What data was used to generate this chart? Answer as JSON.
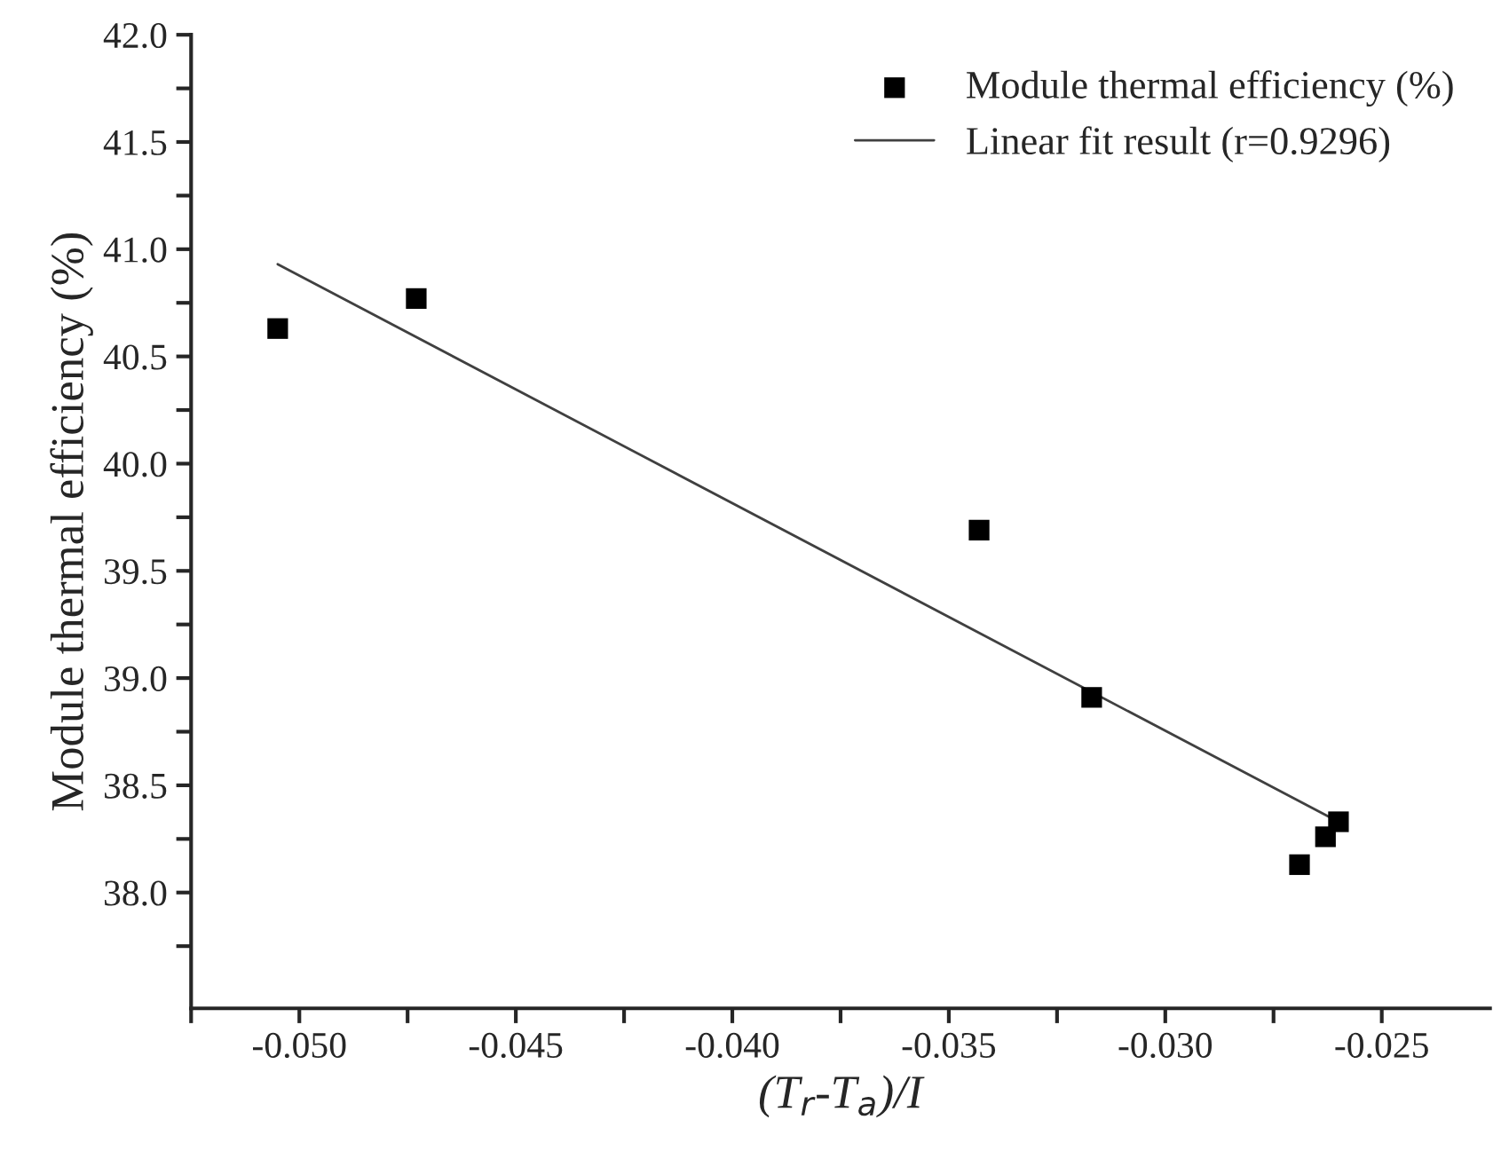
{
  "chart_data": {
    "type": "scatter",
    "xlabel": "(T$_{r}$-T$_{a}$)/I",
    "ylabel": "Module thermal efficiency (%)",
    "series": [
      {
        "name": "Module thermal efficiency (%)",
        "color": "#000000",
        "marker": "square",
        "x": [
          -0.0505,
          -0.0473,
          -0.0343,
          -0.0317,
          -0.0269,
          -0.0263,
          -0.026
        ],
        "values": [
          40.63,
          40.77,
          39.69,
          38.91,
          38.13,
          38.26,
          38.33
        ]
      },
      {
        "name": "Linear fit result (r=0.9296)",
        "type": "line",
        "color": "#404040",
        "marker": "none",
        "line_style": "solid",
        "x": [
          -0.0505,
          -0.026
        ],
        "values": [
          40.93,
          38.33
        ]
      }
    ],
    "xlim": [
      -0.0525,
      -0.0225
    ],
    "ylim": [
      37.46,
      42.0
    ],
    "xticks": [
      {
        "value": -0.0525,
        "label": null
      },
      {
        "value": -0.05,
        "label": "-0.050"
      },
      {
        "value": -0.0475,
        "label": null
      },
      {
        "value": -0.045,
        "label": "-0.045"
      },
      {
        "value": -0.0425,
        "label": null
      },
      {
        "value": -0.04,
        "label": "-0.040"
      },
      {
        "value": -0.0375,
        "label": null
      },
      {
        "value": -0.035,
        "label": "-0.035"
      },
      {
        "value": -0.0325,
        "label": null
      },
      {
        "value": -0.03,
        "label": "-0.030"
      },
      {
        "value": -0.0275,
        "label": null
      },
      {
        "value": -0.025,
        "label": "-0.025"
      }
    ],
    "yticks": [
      {
        "value": 37.75,
        "label": null
      },
      {
        "value": 38.0,
        "label": "38.0"
      },
      {
        "value": 38.25,
        "label": null
      },
      {
        "value": 38.5,
        "label": "38.5"
      },
      {
        "value": 38.75,
        "label": null
      },
      {
        "value": 39.0,
        "label": "39.0"
      },
      {
        "value": 39.25,
        "label": null
      },
      {
        "value": 39.5,
        "label": "39.5"
      },
      {
        "value": 39.75,
        "label": null
      },
      {
        "value": 40.0,
        "label": "40.0"
      },
      {
        "value": 40.25,
        "label": null
      },
      {
        "value": 40.5,
        "label": "40.5"
      },
      {
        "value": 40.75,
        "label": null
      },
      {
        "value": 41.0,
        "label": "41.0"
      },
      {
        "value": 41.25,
        "label": null
      },
      {
        "value": 41.5,
        "label": "41.5"
      },
      {
        "value": 41.75,
        "label": null
      },
      {
        "value": 42.0,
        "label": "42.0"
      }
    ],
    "grid": false,
    "legend": "top right"
  }
}
